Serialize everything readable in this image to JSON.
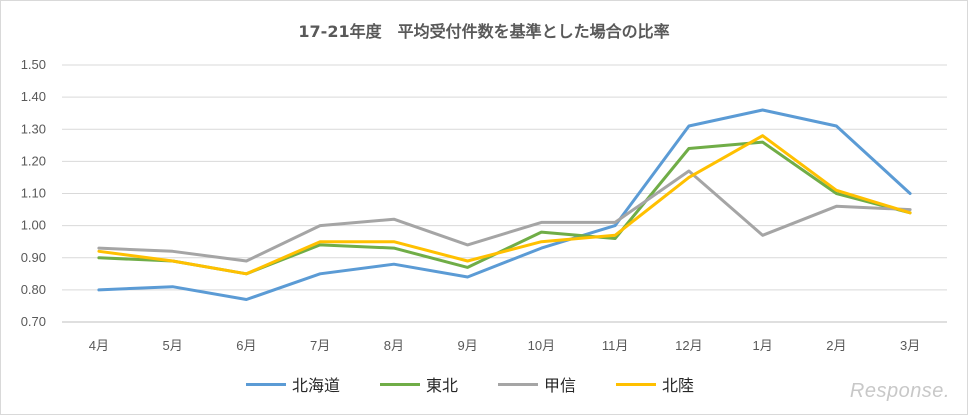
{
  "chart_data": {
    "type": "line",
    "title": "17-21年度　平均受付件数を基準とした場合の比率",
    "categories": [
      "4月",
      "5月",
      "6月",
      "7月",
      "8月",
      "9月",
      "10月",
      "11月",
      "12月",
      "1月",
      "2月",
      "3月"
    ],
    "ylim": [
      0.7,
      1.5
    ],
    "yticks": [
      "0.70",
      "0.80",
      "0.90",
      "1.00",
      "1.10",
      "1.20",
      "1.30",
      "1.40",
      "1.50"
    ],
    "grid": true,
    "legend_position": "bottom",
    "series": [
      {
        "name": "北海道",
        "color": "#5b9bd5",
        "values": [
          0.8,
          0.81,
          0.77,
          0.85,
          0.88,
          0.84,
          0.93,
          1.0,
          1.31,
          1.36,
          1.31,
          1.1
        ]
      },
      {
        "name": "東北",
        "color": "#70ad47",
        "values": [
          0.9,
          0.89,
          0.85,
          0.94,
          0.93,
          0.87,
          0.98,
          0.96,
          1.24,
          1.26,
          1.1,
          1.04
        ]
      },
      {
        "name": "甲信",
        "color": "#a5a5a5",
        "values": [
          0.93,
          0.92,
          0.89,
          1.0,
          1.02,
          0.94,
          1.01,
          1.01,
          1.17,
          0.97,
          1.06,
          1.05
        ]
      },
      {
        "name": "北陸",
        "color": "#ffc000",
        "values": [
          0.92,
          0.89,
          0.85,
          0.95,
          0.95,
          0.89,
          0.95,
          0.97,
          1.15,
          1.28,
          1.11,
          1.04
        ]
      }
    ]
  },
  "watermark": "Response."
}
